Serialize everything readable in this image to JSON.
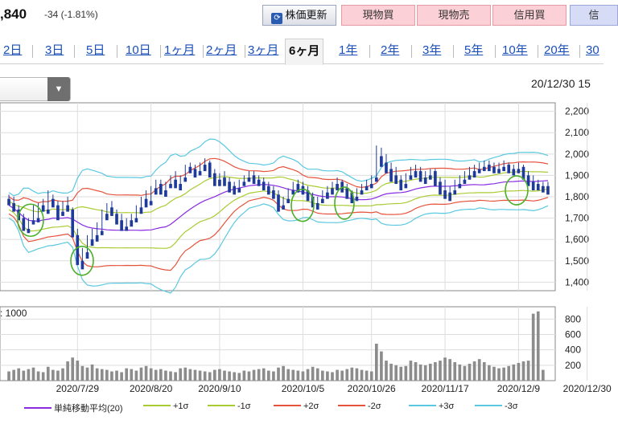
{
  "header": {
    "price": ",840",
    "change": "-34 (-1.81%)",
    "refresh_label": "株価更新",
    "refresh_icon": "refresh-icon",
    "buttons": {
      "genbuy": "現物買",
      "gensell": "現物売",
      "margin": "信用買",
      "extra": "信"
    }
  },
  "tabs": {
    "items": [
      "2日",
      "3日",
      "5日",
      "10日",
      "1ヶ月",
      "2ヶ月",
      "3ヶ月",
      "6ヶ月",
      "1年",
      "2年",
      "3年",
      "5年",
      "10年",
      "20年",
      "30"
    ],
    "active": "6ヶ月"
  },
  "dropdown": {
    "value": "",
    "arrow_icon": "triangle-down-icon"
  },
  "timestamp": "20/12/30 15",
  "volume_label": ": 1000",
  "colors": {
    "up": "#e0334a",
    "down": "#1e3a9a",
    "sma": "#8a2be2",
    "sigma1": "#aacc33",
    "sigma2": "#e6533c",
    "sigma3": "#5ac8e0",
    "volume": "#8c8c8c",
    "annotation": "#4caf2a"
  },
  "legend": [
    "単純移動平均(20)",
    "+1σ",
    "-1σ",
    "+2σ",
    "-2σ",
    "+3σ",
    "-3σ"
  ],
  "chart_data": {
    "type": "candlestick",
    "price_ticks": [
      1400,
      1500,
      1600,
      1700,
      1800,
      1900,
      2000,
      2100,
      2200
    ],
    "price_ylim": [
      1360,
      2240
    ],
    "volume_ticks": [
      200,
      400,
      600,
      800
    ],
    "volume_ylim": [
      0,
      960
    ],
    "x_tick_labels": [
      "2020/7/29",
      "2020/8/20",
      "2020/9/10",
      "2020/10/5",
      "2020/10/26",
      "2020/11/17",
      "2020/12/9",
      "2020/12/30"
    ],
    "x_tick_index": [
      14,
      29,
      43,
      60,
      74,
      89,
      104,
      118
    ],
    "candles": [
      [
        1790,
        1810,
        1770,
        1760
      ],
      [
        1770,
        1800,
        1740,
        1730
      ],
      [
        1740,
        1760,
        1700,
        1690
      ],
      [
        1700,
        1720,
        1650,
        1640
      ],
      [
        1650,
        1700,
        1640,
        1630
      ],
      [
        1690,
        1760,
        1680,
        1670
      ],
      [
        1700,
        1770,
        1690,
        1680
      ],
      [
        1760,
        1790,
        1740,
        1730
      ],
      [
        1740,
        1830,
        1730,
        1720
      ],
      [
        1790,
        1810,
        1760,
        1750
      ],
      [
        1760,
        1780,
        1700,
        1690
      ],
      [
        1730,
        1780,
        1720,
        1710
      ],
      [
        1760,
        1800,
        1740,
        1730
      ],
      [
        1740,
        1750,
        1620,
        1610
      ],
      [
        1620,
        1650,
        1500,
        1480
      ],
      [
        1500,
        1560,
        1470,
        1460
      ],
      [
        1540,
        1620,
        1520,
        1510
      ],
      [
        1600,
        1650,
        1580,
        1570
      ],
      [
        1620,
        1680,
        1600,
        1590
      ],
      [
        1640,
        1740,
        1630,
        1620
      ],
      [
        1720,
        1770,
        1700,
        1690
      ],
      [
        1750,
        1780,
        1720,
        1710
      ],
      [
        1720,
        1740,
        1680,
        1670
      ],
      [
        1690,
        1720,
        1650,
        1640
      ],
      [
        1660,
        1700,
        1650,
        1640
      ],
      [
        1690,
        1720,
        1670,
        1660
      ],
      [
        1700,
        1760,
        1690,
        1680
      ],
      [
        1750,
        1800,
        1730,
        1720
      ],
      [
        1790,
        1830,
        1760,
        1750
      ],
      [
        1780,
        1850,
        1770,
        1760
      ],
      [
        1840,
        1880,
        1820,
        1810
      ],
      [
        1860,
        1880,
        1820,
        1810
      ],
      [
        1830,
        1870,
        1810,
        1800
      ],
      [
        1860,
        1900,
        1850,
        1840
      ],
      [
        1880,
        1920,
        1850,
        1840
      ],
      [
        1860,
        1900,
        1840,
        1830
      ],
      [
        1890,
        1950,
        1880,
        1870
      ],
      [
        1940,
        1960,
        1920,
        1910
      ],
      [
        1930,
        1950,
        1900,
        1890
      ],
      [
        1920,
        1960,
        1910,
        1900
      ],
      [
        1950,
        1980,
        1930,
        1920
      ],
      [
        1960,
        1970,
        1900,
        1890
      ],
      [
        1910,
        1930,
        1860,
        1850
      ],
      [
        1880,
        1910,
        1860,
        1850
      ],
      [
        1890,
        1920,
        1860,
        1850
      ],
      [
        1870,
        1890,
        1830,
        1820
      ],
      [
        1850,
        1870,
        1820,
        1810
      ],
      [
        1840,
        1880,
        1830,
        1820
      ],
      [
        1870,
        1900,
        1860,
        1850
      ],
      [
        1890,
        1920,
        1880,
        1870
      ],
      [
        1900,
        1920,
        1870,
        1860
      ],
      [
        1880,
        1900,
        1860,
        1850
      ],
      [
        1870,
        1890,
        1840,
        1830
      ],
      [
        1850,
        1870,
        1820,
        1810
      ],
      [
        1830,
        1850,
        1800,
        1790
      ],
      [
        1810,
        1830,
        1740,
        1730
      ],
      [
        1760,
        1800,
        1750,
        1740
      ],
      [
        1790,
        1840,
        1780,
        1770
      ],
      [
        1830,
        1870,
        1820,
        1810
      ],
      [
        1860,
        1880,
        1830,
        1820
      ],
      [
        1850,
        1870,
        1820,
        1810
      ],
      [
        1830,
        1850,
        1790,
        1780
      ],
      [
        1800,
        1820,
        1760,
        1750
      ],
      [
        1770,
        1800,
        1750,
        1740
      ],
      [
        1790,
        1830,
        1780,
        1770
      ],
      [
        1820,
        1850,
        1800,
        1790
      ],
      [
        1840,
        1870,
        1820,
        1810
      ],
      [
        1860,
        1890,
        1840,
        1830
      ],
      [
        1870,
        1880,
        1830,
        1820
      ],
      [
        1840,
        1860,
        1800,
        1790
      ],
      [
        1820,
        1830,
        1780,
        1770
      ],
      [
        1800,
        1840,
        1790,
        1780
      ],
      [
        1830,
        1860,
        1820,
        1810
      ],
      [
        1850,
        1880,
        1840,
        1830
      ],
      [
        1860,
        1900,
        1850,
        1840
      ],
      [
        1890,
        2040,
        1880,
        1870
      ],
      [
        1990,
        2030,
        1950,
        1940
      ],
      [
        1960,
        2000,
        1920,
        1910
      ],
      [
        1930,
        1960,
        1880,
        1870
      ],
      [
        1900,
        1940,
        1870,
        1860
      ],
      [
        1880,
        1900,
        1840,
        1830
      ],
      [
        1860,
        1910,
        1850,
        1840
      ],
      [
        1900,
        1940,
        1890,
        1880
      ],
      [
        1920,
        1950,
        1900,
        1890
      ],
      [
        1920,
        1940,
        1880,
        1870
      ],
      [
        1890,
        1920,
        1870,
        1860
      ],
      [
        1900,
        1930,
        1890,
        1880
      ],
      [
        1920,
        1930,
        1860,
        1850
      ],
      [
        1870,
        1890,
        1820,
        1810
      ],
      [
        1830,
        1880,
        1800,
        1790
      ],
      [
        1820,
        1850,
        1790,
        1780
      ],
      [
        1830,
        1880,
        1820,
        1810
      ],
      [
        1860,
        1900,
        1850,
        1840
      ],
      [
        1880,
        1920,
        1870,
        1860
      ],
      [
        1900,
        1940,
        1890,
        1880
      ],
      [
        1920,
        1950,
        1900,
        1890
      ],
      [
        1930,
        1960,
        1920,
        1910
      ],
      [
        1940,
        1970,
        1930,
        1920
      ],
      [
        1950,
        1970,
        1930,
        1920
      ],
      [
        1940,
        1960,
        1920,
        1910
      ],
      [
        1930,
        1960,
        1920,
        1910
      ],
      [
        1940,
        1970,
        1930,
        1920
      ],
      [
        1950,
        1960,
        1920,
        1910
      ],
      [
        1930,
        1950,
        1910,
        1900
      ],
      [
        1930,
        1960,
        1920,
        1910
      ],
      [
        1940,
        1950,
        1890,
        1880
      ],
      [
        1900,
        1920,
        1860,
        1850
      ],
      [
        1870,
        1900,
        1840,
        1830
      ],
      [
        1860,
        1880,
        1840,
        1830
      ],
      [
        1850,
        1870,
        1830,
        1820
      ],
      [
        1850,
        1870,
        1820,
        1810
      ]
    ],
    "volumes": [
      120,
      140,
      160,
      130,
      150,
      170,
      120,
      110,
      180,
      140,
      130,
      160,
      250,
      300,
      260,
      190,
      170,
      210,
      160,
      150,
      140,
      120,
      130,
      110,
      160,
      150,
      130,
      170,
      190,
      160,
      140,
      150,
      130,
      120,
      110,
      160,
      170,
      150,
      140,
      130,
      120,
      110,
      140,
      150,
      130,
      120,
      110,
      100,
      130,
      120,
      140,
      150,
      160,
      130,
      120,
      170,
      190,
      150,
      140,
      130,
      120,
      150,
      180,
      160,
      130,
      120,
      110,
      140,
      130,
      150,
      170,
      160,
      140,
      130,
      120,
      480,
      380,
      260,
      220,
      200,
      180,
      190,
      260,
      240,
      210,
      200,
      220,
      240,
      260,
      300,
      280,
      240,
      210,
      190,
      220,
      250,
      280,
      240,
      200,
      180,
      160,
      170,
      190,
      210,
      230,
      250,
      260,
      870,
      900,
      140
    ]
  }
}
